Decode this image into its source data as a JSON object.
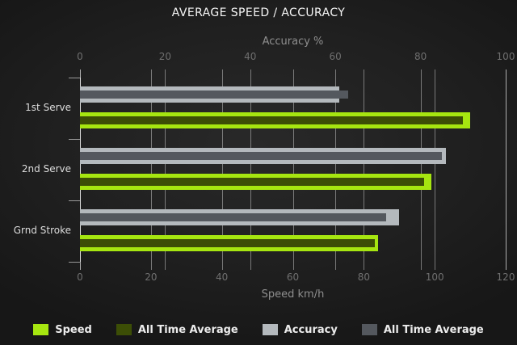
{
  "chart_data": {
    "type": "bar",
    "orientation": "horizontal",
    "title": "AVERAGE SPEED / ACCURACY",
    "categories": [
      "1st Serve",
      "2nd Serve",
      "Grnd Stroke"
    ],
    "axes": {
      "top": {
        "title": "Accuracy %",
        "min": 0,
        "max": 100,
        "ticks": [
          0,
          20,
          40,
          60,
          80,
          100
        ]
      },
      "bottom": {
        "title": "Speed km/h",
        "min": 0,
        "max": 120,
        "ticks": [
          0,
          20,
          40,
          60,
          80,
          100,
          120
        ]
      }
    },
    "series": [
      {
        "name": "Speed",
        "axis": "bottom",
        "color": "#a6e610",
        "values": [
          110,
          99,
          84
        ]
      },
      {
        "name": "All Time Average",
        "axis": "bottom",
        "color": "#3c4e06",
        "values": [
          108,
          97,
          83
        ]
      },
      {
        "name": "Accuracy",
        "axis": "top",
        "color": "#b4b9bd",
        "values": [
          61,
          86,
          75
        ]
      },
      {
        "name": "All Time Average",
        "axis": "top",
        "color": "#54585e",
        "values": [
          63,
          85,
          72
        ]
      }
    ],
    "legend": [
      "Speed",
      "All Time Average",
      "Accuracy",
      "All Time Average"
    ],
    "legend_position": "bottom",
    "grid": true,
    "colors": {
      "background": "#202020",
      "title_text": "#f5f5f5",
      "axis_text": "#8f8f8f",
      "tick_text": "#6f6f6f",
      "category_text": "#dcdcdc",
      "legend_text": "#ececec"
    }
  }
}
